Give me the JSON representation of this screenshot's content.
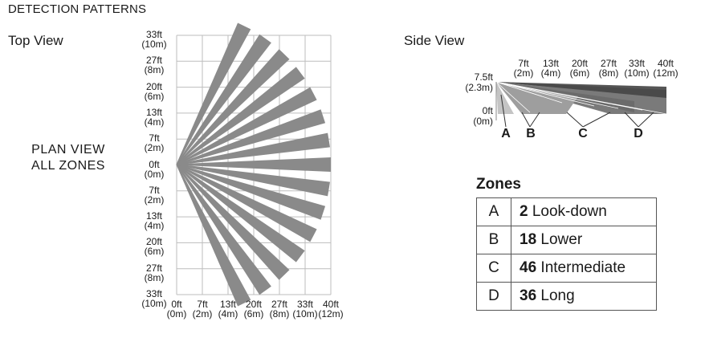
{
  "heading": "DETECTION PATTERNS",
  "top_view": {
    "title": "Top View",
    "plan_label": [
      "PLAN VIEW",
      "ALL ZONES"
    ],
    "y_ticks": [
      [
        "33ft",
        "(10m)"
      ],
      [
        "27ft",
        "(8m)"
      ],
      [
        "20ft",
        "(6m)"
      ],
      [
        "13ft",
        "(4m)"
      ],
      [
        "7ft",
        "(2m)"
      ],
      [
        "0ft",
        "(0m)"
      ],
      [
        "7ft",
        "(2m)"
      ],
      [
        "13ft",
        "(4m)"
      ],
      [
        "20ft",
        "(6m)"
      ],
      [
        "27ft",
        "(8m)"
      ],
      [
        "33ft",
        "(10m)"
      ]
    ],
    "x_ticks": [
      [
        "0ft",
        "(0m)"
      ],
      [
        "7ft",
        "(2m)"
      ],
      [
        "13ft",
        "(4m)"
      ],
      [
        "20ft",
        "(6m)"
      ],
      [
        "27ft",
        "(8m)"
      ],
      [
        "33ft",
        "(10m)"
      ],
      [
        "40ft",
        "(12m)"
      ]
    ],
    "beam_color": "#8a8a8a",
    "grid_color": "#bdbdbd"
  },
  "side_view": {
    "title": "Side View",
    "height_label": [
      "7.5ft",
      "(2.3m)"
    ],
    "floor_label": [
      "0ft",
      "(0m)"
    ],
    "x_ticks": [
      [
        "7ft",
        "(2m)"
      ],
      [
        "13ft",
        "(4m)"
      ],
      [
        "20ft",
        "(6m)"
      ],
      [
        "27ft",
        "(8m)"
      ],
      [
        "33ft",
        "(10m)"
      ],
      [
        "40ft",
        "(12m)"
      ]
    ],
    "zone_letters": [
      "A",
      "B",
      "C",
      "D"
    ],
    "colors": {
      "long": "#555555",
      "intermediate": "#7a7a7a",
      "lower": "#9e9e9e",
      "lookdown": "#c4c4c4"
    }
  },
  "zones": {
    "title": "Zones",
    "rows": [
      {
        "letter": "A",
        "count": "2",
        "name": "Look-down"
      },
      {
        "letter": "B",
        "count": "18",
        "name": "Lower"
      },
      {
        "letter": "C",
        "count": "46",
        "name": "Intermediate"
      },
      {
        "letter": "D",
        "count": "36",
        "name": "Long"
      }
    ]
  }
}
